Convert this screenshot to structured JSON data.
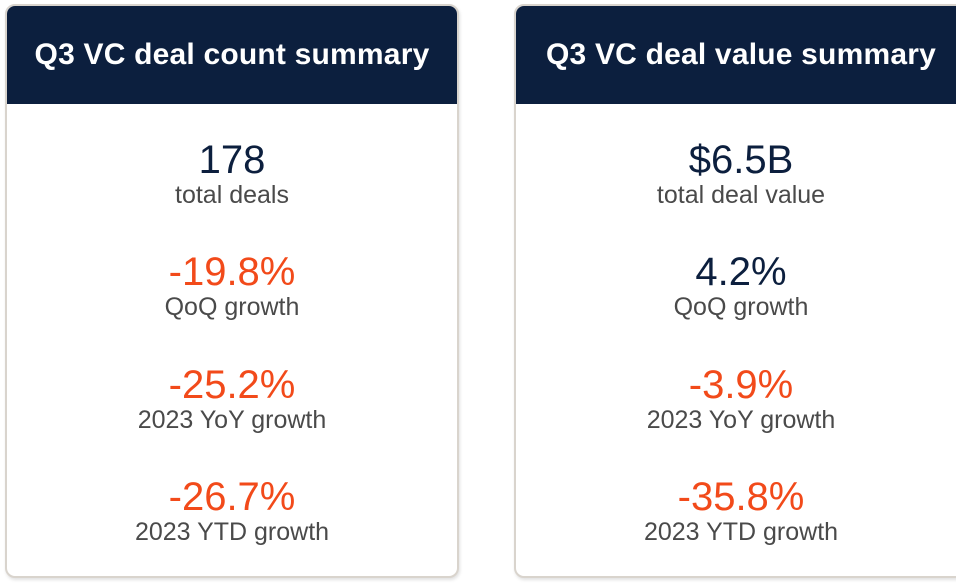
{
  "deal_count": {
    "title": "Q3 VC deal count summary",
    "metrics": [
      {
        "value": "178",
        "label": "total deals",
        "negative": false
      },
      {
        "value": "-19.8%",
        "label": "QoQ growth",
        "negative": true
      },
      {
        "value": "-25.2%",
        "label": "2023 YoY growth",
        "negative": true
      },
      {
        "value": "-26.7%",
        "label": "2023 YTD growth",
        "negative": true
      }
    ]
  },
  "deal_value": {
    "title": "Q3 VC deal value summary",
    "metrics": [
      {
        "value": "$6.5B",
        "label": "total deal value",
        "negative": false
      },
      {
        "value": "4.2%",
        "label": "QoQ growth",
        "negative": false
      },
      {
        "value": "-3.9%",
        "label": "2023 YoY growth",
        "negative": true
      },
      {
        "value": "-35.8%",
        "label": "2023 YTD growth",
        "negative": true
      }
    ]
  },
  "colors": {
    "header_bg": "#0c1f3e",
    "header_text": "#ffffff",
    "positive_value": "#0c1f3e",
    "negative_value": "#f24a1a",
    "label_text": "#4a4a4a",
    "card_border": "#d9d4cd"
  }
}
